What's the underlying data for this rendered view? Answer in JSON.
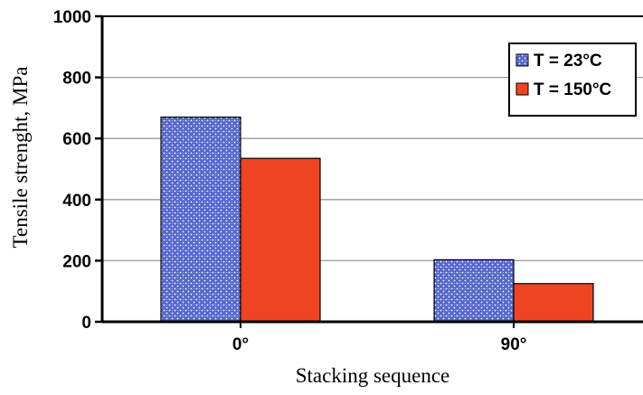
{
  "chart_data": {
    "type": "bar",
    "categories": [
      "0°",
      "90°"
    ],
    "series": [
      {
        "name": "T = 23°C",
        "values": [
          670,
          203
        ],
        "color": "#5c6fd0",
        "pattern": "dotted"
      },
      {
        "name": "T = 150°C",
        "values": [
          535,
          125
        ],
        "color": "#ee4422",
        "pattern": "solid"
      }
    ],
    "xlabel": "Stacking sequence",
    "ylabel": "Tensile strenght, MPa",
    "ylim": [
      0,
      1000
    ],
    "yticks": [
      0,
      200,
      400,
      600,
      800,
      1000
    ],
    "grid": true,
    "legend_position": "top-right"
  }
}
